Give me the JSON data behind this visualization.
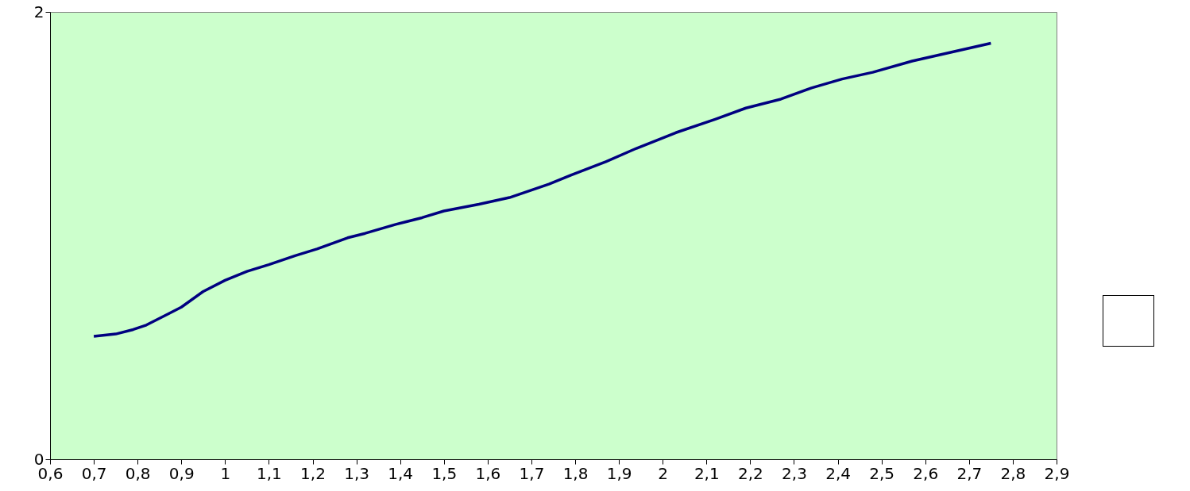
{
  "chart_data": {
    "type": "line",
    "x": [
      0.7,
      0.75,
      0.79,
      0.82,
      0.87,
      0.9,
      0.95,
      1.0,
      1.05,
      1.1,
      1.16,
      1.21,
      1.28,
      1.32,
      1.39,
      1.45,
      1.5,
      1.58,
      1.65,
      1.74,
      1.79,
      1.87,
      1.94,
      2.03,
      2.12,
      2.19,
      2.27,
      2.34,
      2.41,
      2.48,
      2.57,
      2.66,
      2.75
    ],
    "series": [
      {
        "color": "#000080",
        "values": [
          0.55,
          0.56,
          0.58,
          0.6,
          0.65,
          0.68,
          0.75,
          0.8,
          0.84,
          0.87,
          0.91,
          0.94,
          0.99,
          1.01,
          1.05,
          1.08,
          1.11,
          1.14,
          1.17,
          1.23,
          1.27,
          1.33,
          1.39,
          1.46,
          1.52,
          1.57,
          1.61,
          1.66,
          1.7,
          1.73,
          1.78,
          1.82,
          1.86
        ]
      }
    ],
    "xlim": [
      0.6,
      2.9
    ],
    "xticks": [
      {
        "value": 0.6,
        "label": "0,6"
      },
      {
        "value": 0.7,
        "label": "0,7"
      },
      {
        "value": 0.8,
        "label": "0,8"
      },
      {
        "value": 0.9,
        "label": "0,9"
      },
      {
        "value": 1,
        "label": "1"
      },
      {
        "value": 1.1,
        "label": "1,1"
      },
      {
        "value": 1.2,
        "label": "1,2"
      },
      {
        "value": 1.3,
        "label": "1,3"
      },
      {
        "value": 1.4,
        "label": "1,4"
      },
      {
        "value": 1.5,
        "label": "1,5"
      },
      {
        "value": 1.6,
        "label": "1,6"
      },
      {
        "value": 1.7,
        "label": "1,7"
      },
      {
        "value": 1.8,
        "label": "1,8"
      },
      {
        "value": 1.9,
        "label": "1,9"
      },
      {
        "value": 2,
        "label": "2"
      },
      {
        "value": 2.1,
        "label": "2,1"
      },
      {
        "value": 2.2,
        "label": "2,2"
      },
      {
        "value": 2.3,
        "label": "2,3"
      },
      {
        "value": 2.4,
        "label": "2,4"
      },
      {
        "value": 2.5,
        "label": "2,5"
      },
      {
        "value": 2.6,
        "label": "2,6"
      },
      {
        "value": 2.7,
        "label": "2,7"
      },
      {
        "value": 2.8,
        "label": "2,8"
      },
      {
        "value": 2.9,
        "label": "2,9"
      }
    ],
    "ylim": [
      0,
      2
    ],
    "yticks": [
      0,
      2
    ],
    "marker": "none",
    "line_style": "solid"
  }
}
